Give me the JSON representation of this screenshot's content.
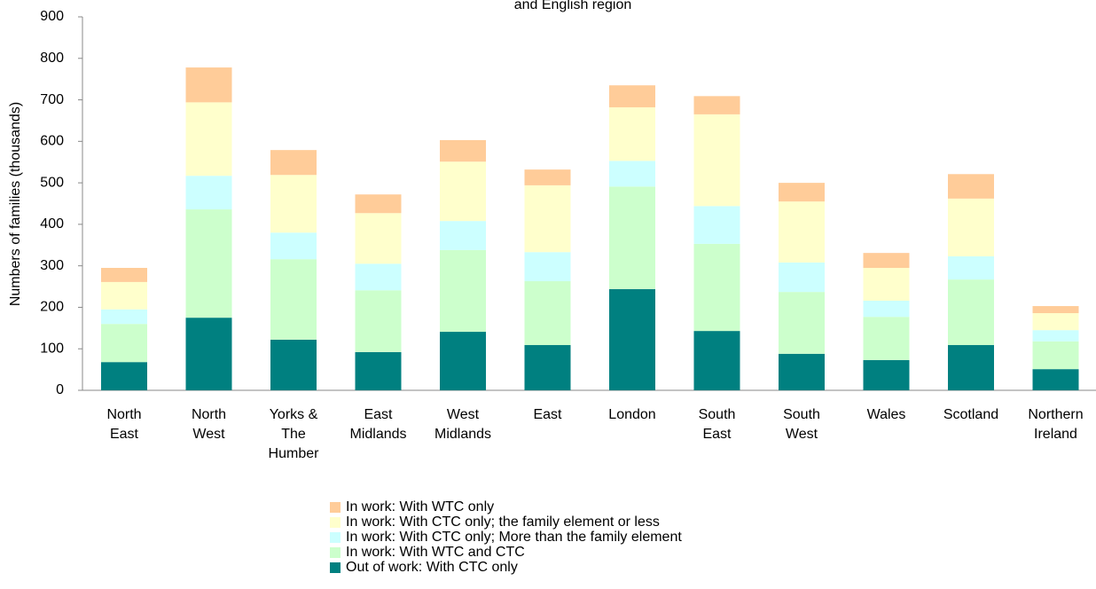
{
  "chart_data": {
    "type": "stacked_bar",
    "title": "and English region",
    "y_label": "Numbers of families (thousands)",
    "categories": [
      "North\nEast",
      "North\nWest",
      "Yorks &\nThe\nHumber",
      "East\nMidlands",
      "West\nMidlands",
      "East",
      "London",
      "South\nEast",
      "South\nWest",
      "Wales",
      "Scotland",
      "Northern\nIreland"
    ],
    "series": [
      {
        "name": "Out of work: With CTC only",
        "color": "#008080",
        "values": [
          68,
          175,
          122,
          92,
          141,
          109,
          244,
          143,
          88,
          73,
          109,
          51
        ]
      },
      {
        "name": "In work: With WTC and CTC",
        "color": "#ccffcc",
        "values": [
          92,
          261,
          194,
          149,
          197,
          154,
          247,
          210,
          149,
          104,
          158,
          67
        ]
      },
      {
        "name": "In work: With CTC only; More than the family element",
        "color": "#ccffff",
        "values": [
          35,
          81,
          64,
          64,
          70,
          70,
          62,
          91,
          71,
          39,
          56,
          27
        ]
      },
      {
        "name": "In work: With CTC only; the family element or less",
        "color": "#ffffcc",
        "values": [
          66,
          177,
          139,
          122,
          143,
          161,
          129,
          221,
          147,
          79,
          139,
          41
        ]
      },
      {
        "name": "In work: With WTC only",
        "color": "#ffcc99",
        "values": [
          34,
          84,
          60,
          45,
          52,
          38,
          53,
          44,
          45,
          36,
          59,
          17
        ]
      }
    ],
    "ylim": [
      0,
      900
    ],
    "yticks": [
      0,
      100,
      200,
      300,
      400,
      500,
      600,
      700,
      800,
      900
    ],
    "grid": false
  }
}
